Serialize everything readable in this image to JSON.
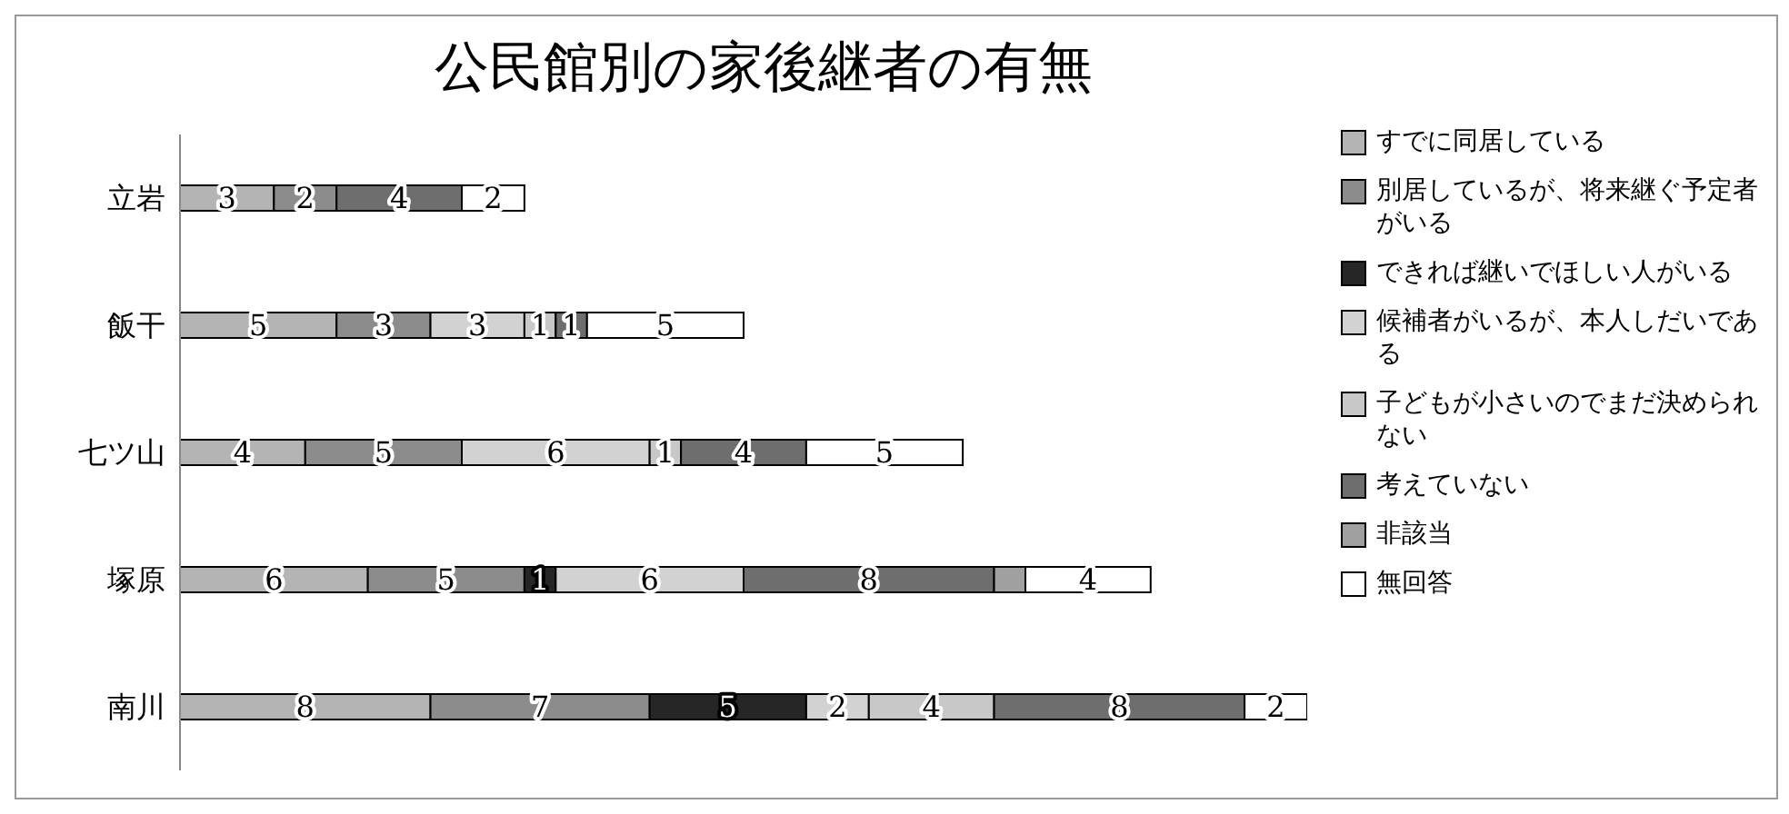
{
  "chart_data": {
    "type": "bar",
    "orientation": "horizontal",
    "stacked": true,
    "title": "公民館別の家後継者の有無",
    "categories": [
      "立岩",
      "飯干",
      "七ツ山",
      "塚原",
      "南川"
    ],
    "legend": "right",
    "series": [
      {
        "name": "すでに同居している",
        "color": "#b4b4b4",
        "values": [
          3,
          5,
          4,
          6,
          8
        ],
        "value_labels": [
          "3",
          "5",
          "4",
          "6",
          "8"
        ]
      },
      {
        "name": "別居しているが、将来継ぐ予定者がいる",
        "color": "#8c8c8c",
        "values": [
          2,
          3,
          5,
          5,
          7
        ],
        "value_labels": [
          "2",
          "3",
          "5",
          "5",
          "7"
        ]
      },
      {
        "name": "できれば継いでほしい人がいる",
        "color": "#262626",
        "values": [
          0,
          0,
          0,
          1,
          5
        ],
        "value_labels": [
          null,
          null,
          null,
          "1",
          "5"
        ]
      },
      {
        "name": "候補者がいるが、本人しだいである",
        "color": "#d2d2d2",
        "values": [
          0,
          3,
          6,
          6,
          2
        ],
        "value_labels": [
          null,
          "3",
          "6",
          "6",
          "2"
        ]
      },
      {
        "name": "子どもが小さいのでまだ決められない",
        "color": "#c8c8c8",
        "values": [
          0,
          1,
          1,
          0,
          4
        ],
        "value_labels": [
          null,
          "1",
          "1",
          null,
          "4"
        ]
      },
      {
        "name": "考えていない",
        "color": "#6e6e6e",
        "values": [
          4,
          1,
          4,
          8,
          8
        ],
        "value_labels": [
          "4",
          "1",
          "4",
          "8",
          "8"
        ]
      },
      {
        "name": "非該当",
        "color": "#a0a0a0",
        "values": [
          0,
          0,
          0,
          1,
          0
        ],
        "value_labels": [
          null,
          null,
          null,
          null,
          null
        ]
      },
      {
        "name": "無回答",
        "color": "#ffffff",
        "values": [
          2,
          5,
          5,
          4,
          2
        ],
        "value_labels": [
          "2",
          "5",
          "5",
          "4",
          "2"
        ]
      }
    ]
  }
}
